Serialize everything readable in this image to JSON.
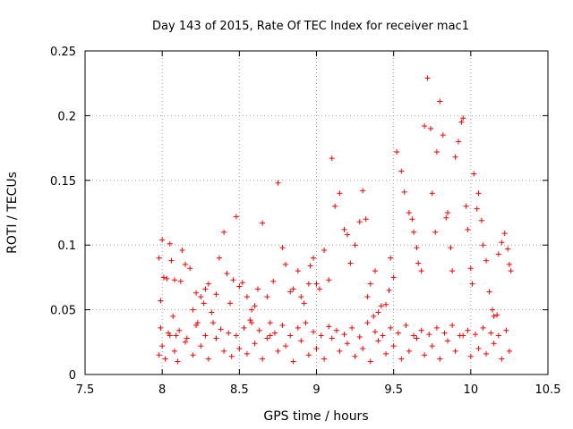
{
  "chart_data": {
    "type": "scatter",
    "title": "Day 143 of 2015, Rate Of TEC Index for receiver mac1",
    "xlabel": "GPS time / hours",
    "ylabel": "ROTI / TECUs",
    "xlim": [
      7.5,
      10.5
    ],
    "ylim": [
      0,
      0.25
    ],
    "grid": true,
    "marker": "+",
    "marker_color": "#ff0000",
    "x_ticks": [
      {
        "value": 7.5,
        "label": "7.5"
      },
      {
        "value": 8.0,
        "label": "8"
      },
      {
        "value": 8.5,
        "label": "8.5"
      },
      {
        "value": 9.0,
        "label": "9"
      },
      {
        "value": 9.5,
        "label": "9.5"
      },
      {
        "value": 10.0,
        "label": "10"
      },
      {
        "value": 10.5,
        "label": "10.5"
      }
    ],
    "y_ticks": [
      {
        "value": 0.0,
        "label": "0"
      },
      {
        "value": 0.05,
        "label": "0.05"
      },
      {
        "value": 0.1,
        "label": "0.1"
      },
      {
        "value": 0.15,
        "label": "0.15"
      },
      {
        "value": 0.2,
        "label": "0.2"
      },
      {
        "value": 0.25,
        "label": "0.25"
      }
    ],
    "series": [
      {
        "name": "ROTI",
        "x": [
          7.98,
          7.99,
          8.0,
          8.01,
          8.03,
          8.05,
          8.06,
          8.07,
          8.08,
          8.09,
          8.12,
          8.13,
          8.15,
          8.18,
          8.2,
          8.22,
          8.23,
          8.25,
          8.27,
          8.28,
          8.3,
          8.32,
          8.35,
          8.37,
          8.4,
          8.42,
          8.44,
          8.46,
          8.48,
          8.5,
          8.52,
          8.55,
          8.57,
          8.58,
          8.6,
          8.62,
          8.65,
          8.68,
          8.7,
          8.72,
          8.75,
          8.78,
          8.8,
          8.83,
          8.85,
          8.88,
          8.9,
          8.92,
          8.95,
          8.96,
          8.98,
          9.0,
          9.02,
          9.05,
          9.08,
          9.1,
          9.12,
          9.15,
          9.18,
          9.2,
          9.22,
          9.25,
          9.28,
          9.3,
          9.32,
          9.33,
          9.35,
          9.37,
          9.38,
          9.4,
          9.42,
          9.45,
          9.47,
          9.48,
          9.5,
          9.52,
          9.55,
          9.57,
          9.6,
          9.62,
          9.63,
          9.65,
          9.66,
          9.68,
          9.7,
          9.72,
          9.74,
          9.75,
          9.77,
          9.78,
          9.8,
          9.82,
          9.84,
          9.85,
          9.87,
          9.88,
          9.9,
          9.92,
          9.94,
          9.95,
          9.97,
          9.98,
          10.0,
          10.01,
          10.02,
          10.04,
          10.05,
          10.07,
          10.08,
          10.1,
          10.12,
          10.14,
          10.15,
          10.17,
          10.18,
          10.2,
          10.22,
          10.24,
          10.25,
          10.26,
          7.98,
          8.0,
          8.02,
          8.05,
          8.08,
          8.1,
          8.15,
          8.2,
          8.25,
          8.3,
          8.35,
          8.4,
          8.45,
          8.5,
          8.55,
          8.6,
          8.65,
          8.7,
          8.75,
          8.8,
          8.85,
          8.9,
          8.95,
          9.0,
          9.05,
          9.1,
          9.15,
          9.2,
          9.25,
          9.3,
          9.35,
          9.4,
          9.45,
          9.5,
          9.55,
          9.6,
          9.65,
          9.7,
          9.75,
          9.8,
          9.85,
          9.9,
          9.95,
          10.0,
          10.05,
          10.1,
          10.15,
          10.2,
          10.25,
          7.99,
          8.04,
          8.11,
          8.16,
          8.22,
          8.28,
          8.33,
          8.38,
          8.43,
          8.48,
          8.53,
          8.58,
          8.63,
          8.68,
          8.73,
          8.78,
          8.83,
          8.88,
          8.93,
          8.98,
          9.03,
          9.08,
          9.13,
          9.18,
          9.23,
          9.28,
          9.33,
          9.38,
          9.43,
          9.48,
          9.53,
          9.58,
          9.63,
          9.68,
          9.73,
          9.78,
          9.83,
          9.88,
          9.93,
          9.98,
          10.03,
          10.08,
          10.13,
          10.18,
          10.23
        ],
        "y": [
          0.09,
          0.057,
          0.104,
          0.075,
          0.074,
          0.101,
          0.088,
          0.045,
          0.073,
          0.03,
          0.072,
          0.096,
          0.085,
          0.082,
          0.05,
          0.063,
          0.04,
          0.06,
          0.055,
          0.066,
          0.07,
          0.048,
          0.062,
          0.09,
          0.11,
          0.078,
          0.055,
          0.073,
          0.122,
          0.068,
          0.071,
          0.06,
          0.042,
          0.05,
          0.053,
          0.066,
          0.117,
          0.06,
          0.04,
          0.072,
          0.148,
          0.098,
          0.085,
          0.064,
          0.066,
          0.08,
          0.06,
          0.055,
          0.07,
          0.084,
          0.09,
          0.07,
          0.066,
          0.096,
          0.073,
          0.167,
          0.13,
          0.14,
          0.112,
          0.108,
          0.086,
          0.1,
          0.118,
          0.142,
          0.12,
          0.06,
          0.07,
          0.045,
          0.08,
          0.048,
          0.053,
          0.054,
          0.065,
          0.09,
          0.075,
          0.172,
          0.157,
          0.141,
          0.125,
          0.12,
          0.11,
          0.098,
          0.086,
          0.08,
          0.192,
          0.229,
          0.19,
          0.14,
          0.11,
          0.172,
          0.211,
          0.185,
          0.121,
          0.125,
          0.098,
          0.08,
          0.168,
          0.18,
          0.195,
          0.198,
          0.13,
          0.112,
          0.082,
          0.07,
          0.155,
          0.128,
          0.14,
          0.119,
          0.1,
          0.088,
          0.064,
          0.05,
          0.045,
          0.046,
          0.093,
          0.102,
          0.109,
          0.097,
          0.085,
          0.08,
          0.015,
          0.022,
          0.012,
          0.03,
          0.018,
          0.01,
          0.025,
          0.015,
          0.022,
          0.012,
          0.028,
          0.018,
          0.014,
          0.02,
          0.016,
          0.024,
          0.012,
          0.03,
          0.018,
          0.022,
          0.01,
          0.026,
          0.015,
          0.02,
          0.012,
          0.028,
          0.018,
          0.024,
          0.014,
          0.02,
          0.01,
          0.026,
          0.016,
          0.022,
          0.012,
          0.018,
          0.028,
          0.015,
          0.022,
          0.012,
          0.026,
          0.018,
          0.03,
          0.014,
          0.02,
          0.016,
          0.024,
          0.012,
          0.018,
          0.036,
          0.032,
          0.034,
          0.028,
          0.038,
          0.03,
          0.04,
          0.035,
          0.032,
          0.03,
          0.036,
          0.04,
          0.034,
          0.028,
          0.032,
          0.038,
          0.03,
          0.036,
          0.04,
          0.033,
          0.03,
          0.037,
          0.034,
          0.031,
          0.036,
          0.029,
          0.04,
          0.033,
          0.03,
          0.036,
          0.032,
          0.038,
          0.03,
          0.034,
          0.031,
          0.036,
          0.032,
          0.038,
          0.03,
          0.034,
          0.031,
          0.036,
          0.032,
          0.03,
          0.034
        ]
      }
    ]
  }
}
